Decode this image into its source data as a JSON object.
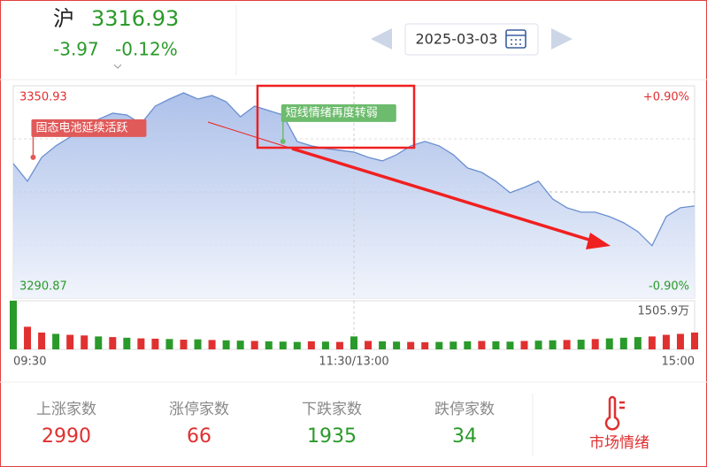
{
  "header": {
    "index": "沪",
    "price": "3316.93",
    "change": "-3.97",
    "change_pct": "-0.12%",
    "date": "2025-03-03"
  },
  "chart_data": [
    {
      "type": "line",
      "color": "#6a8fd0",
      "xlim": [
        0,
        240
      ],
      "xticks": [
        {
          "value": 0,
          "label": "09:30"
        },
        {
          "value": 120,
          "label": "11:30/13:00"
        },
        {
          "value": 240,
          "label": "15:00"
        }
      ],
      "ylim": [
        3290.87,
        3350.93
      ],
      "yticks": [
        3290.87,
        3350.93
      ],
      "y2lim": [
        -0.9,
        0.9
      ],
      "y2ticks": [
        {
          "value": -0.9,
          "label": "-0.90%"
        },
        {
          "value": 0.9,
          "label": "+0.90%"
        }
      ],
      "x": [
        0,
        5,
        10,
        15,
        20,
        25,
        30,
        35,
        40,
        45,
        50,
        55,
        60,
        65,
        70,
        75,
        80,
        85,
        90,
        95,
        100,
        105,
        110,
        115,
        120,
        125,
        130,
        135,
        140,
        145,
        150,
        155,
        160,
        165,
        170,
        175,
        180,
        185,
        190,
        195,
        200,
        205,
        210,
        215,
        220,
        225,
        230,
        235,
        240
      ],
      "values": [
        3328.93,
        3323.93,
        3330.68,
        3333.93,
        3336.43,
        3338.93,
        3341.43,
        3343.18,
        3342.68,
        3340.18,
        3345.18,
        3347.18,
        3348.93,
        3347.18,
        3348.18,
        3346.43,
        3342.18,
        3345.18,
        3343.93,
        3342.68,
        3335.18,
        3333.93,
        3333.18,
        3332.68,
        3332.18,
        3330.68,
        3329.68,
        3331.43,
        3333.93,
        3335.18,
        3333.93,
        3331.43,
        3327.68,
        3326.43,
        3323.93,
        3320.68,
        3322.18,
        3323.93,
        3318.93,
        3316.43,
        3315.18,
        3315.18,
        3313.93,
        3312.18,
        3309.68,
        3305.68,
        3313.93,
        3316.43,
        3316.93
      ],
      "annotations": [
        {
          "text": "固态电池延续活跃",
          "x": 7,
          "y": 3330.68,
          "color": "#e05a5a"
        },
        {
          "text": "短线情绪再度转弱",
          "x": 95,
          "y": 3335.18,
          "color": "#6dbb6d"
        }
      ]
    },
    {
      "type": "bar",
      "xlim": [
        0,
        240
      ],
      "ylim": [
        0,
        1505.9
      ],
      "yticks": [
        {
          "value": 1505.9,
          "label": "1505.9万"
        }
      ],
      "x": [
        0,
        5,
        10,
        15,
        20,
        25,
        30,
        35,
        40,
        45,
        50,
        55,
        60,
        65,
        70,
        75,
        80,
        85,
        90,
        95,
        100,
        105,
        110,
        115,
        120,
        125,
        130,
        135,
        140,
        145,
        150,
        155,
        160,
        165,
        170,
        175,
        180,
        185,
        190,
        195,
        200,
        205,
        210,
        215,
        220,
        225,
        230,
        235,
        240
      ],
      "values": [
        1505.9,
        700,
        520,
        480,
        450,
        430,
        400,
        380,
        360,
        340,
        330,
        320,
        300,
        310,
        290,
        280,
        270,
        260,
        250,
        240,
        230,
        250,
        240,
        230,
        400,
        260,
        250,
        240,
        230,
        220,
        230,
        240,
        250,
        260,
        250,
        240,
        260,
        270,
        280,
        290,
        300,
        320,
        340,
        360,
        380,
        400,
        450,
        480,
        520
      ],
      "colors": [
        "#2a9a2a",
        "#e03030",
        "#e03030",
        "#2a9a2a",
        "#e03030",
        "#e03030",
        "#2a9a2a",
        "#e03030",
        "#2a9a2a",
        "#e03030",
        "#e03030",
        "#2a9a2a",
        "#e03030",
        "#2a9a2a",
        "#e03030",
        "#2a9a2a",
        "#2a9a2a",
        "#e03030",
        "#2a9a2a",
        "#2a9a2a",
        "#2a9a2a",
        "#e03030",
        "#2a9a2a",
        "#e03030",
        "#2a9a2a",
        "#e03030",
        "#2a9a2a",
        "#2a9a2a",
        "#e03030",
        "#e03030",
        "#2a9a2a",
        "#2a9a2a",
        "#2a9a2a",
        "#e03030",
        "#2a9a2a",
        "#2a9a2a",
        "#e03030",
        "#2a9a2a",
        "#2a9a2a",
        "#e03030",
        "#2a9a2a",
        "#e03030",
        "#2a9a2a",
        "#2a9a2a",
        "#2a9a2a",
        "#e03030",
        "#e03030",
        "#e03030",
        "#e03030"
      ]
    }
  ],
  "stats": [
    {
      "label": "上涨家数",
      "value": 2990,
      "color": "#e03030"
    },
    {
      "label": "涨停家数",
      "value": 66,
      "color": "#e03030"
    },
    {
      "label": "下跌家数",
      "value": 1935,
      "color": "#2a9a2a"
    },
    {
      "label": "跌停家数",
      "value": 34,
      "color": "#2a9a2a"
    }
  ],
  "sentiment": "市场情绪"
}
